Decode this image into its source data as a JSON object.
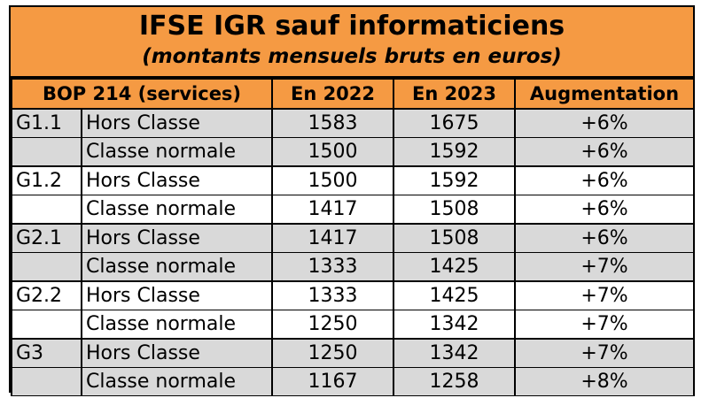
{
  "header": {
    "title": "IFSE IGR sauf informaticiens",
    "subtitle": "(montants mensuels bruts en euros)"
  },
  "table": {
    "columns": [
      "BOP 214 (services)",
      "En 2022",
      "En 2023",
      "Augmentation"
    ],
    "rows": [
      {
        "group": "G1.1",
        "label": "Hors Classe",
        "y2022": "1583",
        "y2023": "1675",
        "increase": "+6%"
      },
      {
        "group": "",
        "label": "Classe normale",
        "y2022": "1500",
        "y2023": "1592",
        "increase": "+6%"
      },
      {
        "group": "G1.2",
        "label": "Hors Classe",
        "y2022": "1500",
        "y2023": "1592",
        "increase": "+6%"
      },
      {
        "group": "",
        "label": "Classe normale",
        "y2022": "1417",
        "y2023": "1508",
        "increase": "+6%"
      },
      {
        "group": "G2.1",
        "label": "Hors Classe",
        "y2022": "1417",
        "y2023": "1508",
        "increase": "+6%"
      },
      {
        "group": "",
        "label": "Classe normale",
        "y2022": "1333",
        "y2023": "1425",
        "increase": "+7%"
      },
      {
        "group": "G2.2",
        "label": "Hors Classe",
        "y2022": "1333",
        "y2023": "1425",
        "increase": "+7%"
      },
      {
        "group": "",
        "label": "Classe normale",
        "y2022": "1250",
        "y2023": "1342",
        "increase": "+7%"
      },
      {
        "group": "G3",
        "label": "Hors Classe",
        "y2022": "1250",
        "y2023": "1342",
        "increase": "+7%"
      },
      {
        "group": "",
        "label": "Classe normale",
        "y2022": "1167",
        "y2023": "1258",
        "increase": "+8%"
      }
    ]
  },
  "colors": {
    "header_orange": "#F59A43",
    "row_gray": "#D9D9D9",
    "row_white": "#FFFFFF"
  }
}
